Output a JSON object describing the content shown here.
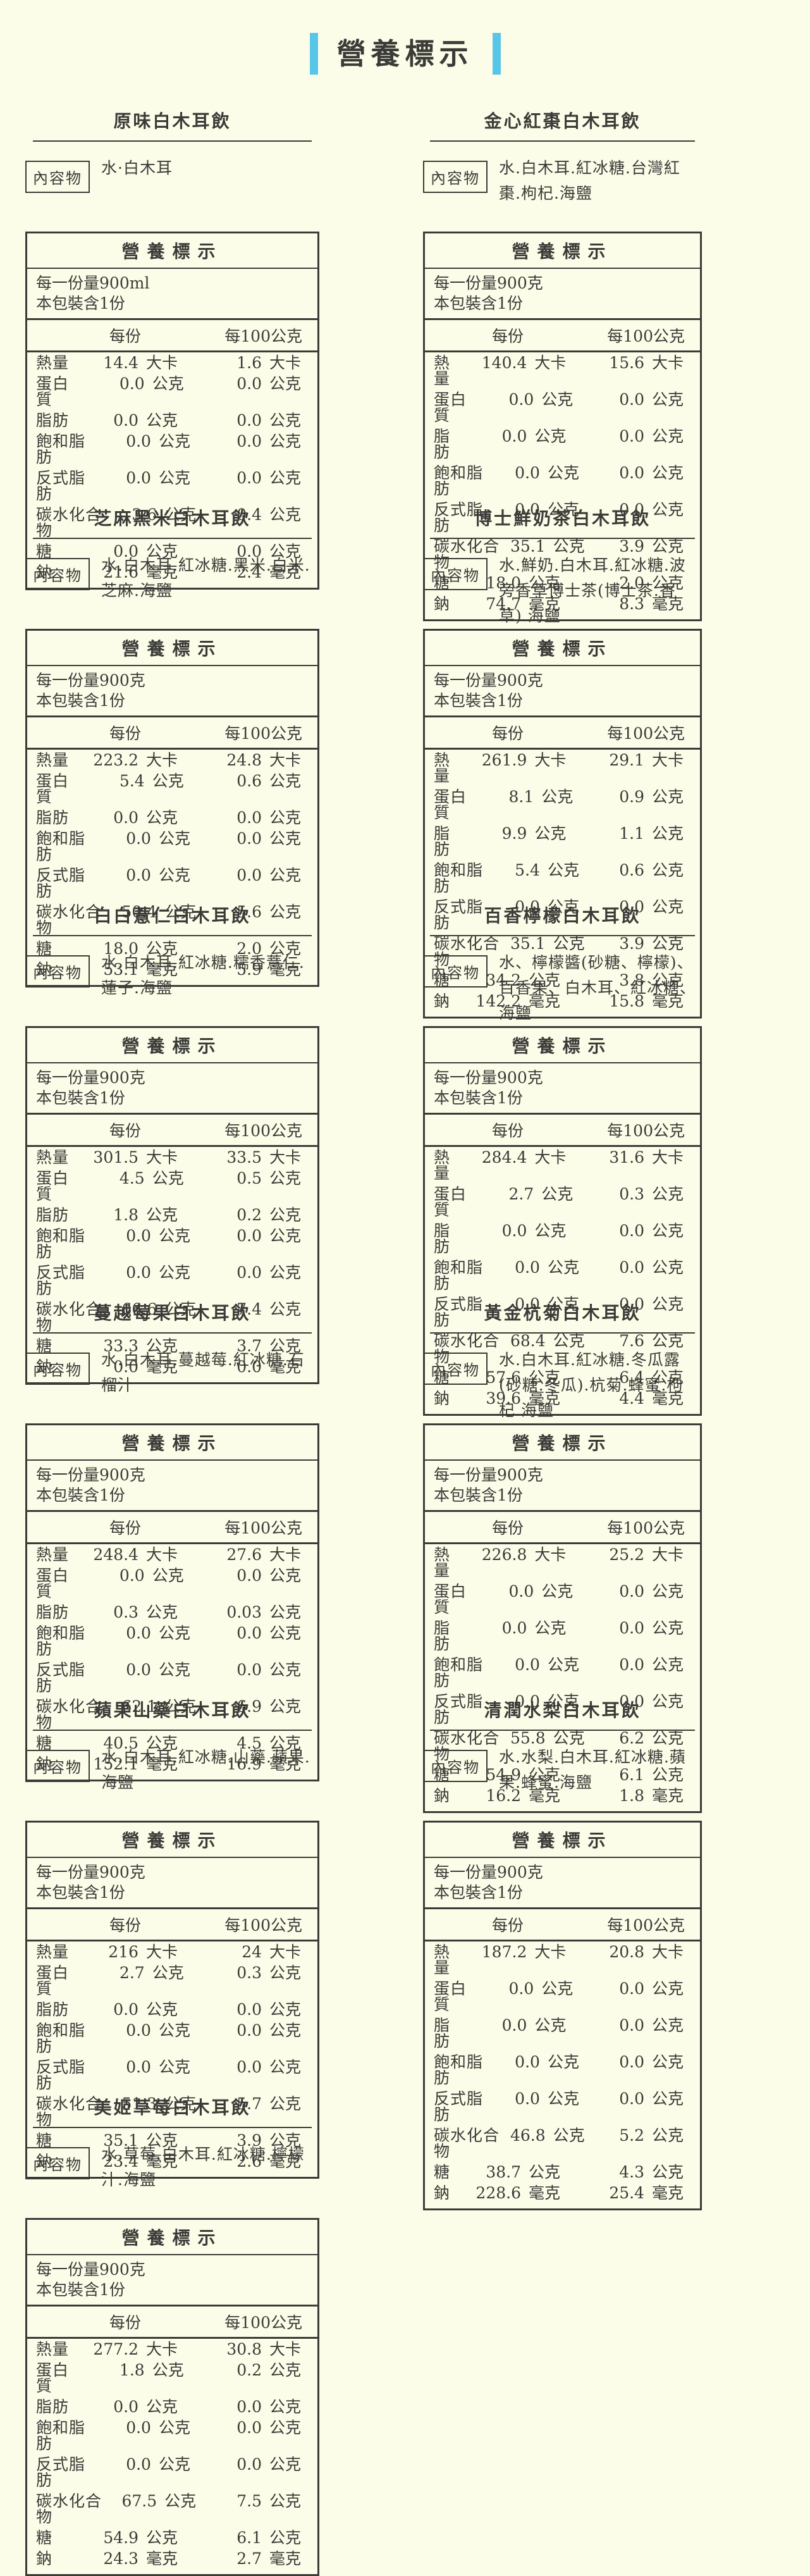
{
  "page": {
    "title": "營養標示",
    "accent_color": "#58C6E8",
    "background_color": "#FCFDE8",
    "text_color": "#3B3B38"
  },
  "labels": {
    "contents_label": "內容物",
    "nutrition_title": "營養標示",
    "serving_prefix": "每一份量",
    "package_line": "本包裝含1份",
    "col_per_serving": "每份",
    "col_per_100g": "每100公克"
  },
  "nutrients": [
    {
      "name": "熱量",
      "unit": "大卡"
    },
    {
      "name": "蛋白質",
      "unit": "公克"
    },
    {
      "name": "脂肪",
      "unit": "公克"
    },
    {
      "name": "飽和脂肪",
      "unit": "公克"
    },
    {
      "name": "反式脂肪",
      "unit": "公克"
    },
    {
      "name": "碳水化合物",
      "unit": "公克"
    },
    {
      "name": "糖",
      "unit": "公克"
    },
    {
      "name": "鈉",
      "unit": "毫克"
    }
  ],
  "products": [
    {
      "name": "原味白木耳飲",
      "ingredients": "水·白木耳",
      "serving": "900ml",
      "values": [
        [
          "14.4",
          "1.6"
        ],
        [
          "0.0",
          "0.0"
        ],
        [
          "0.0",
          "0.0"
        ],
        [
          "0.0",
          "0.0"
        ],
        [
          "0.0",
          "0.0"
        ],
        [
          "3.6",
          "0.4"
        ],
        [
          "0.0",
          "0.0"
        ],
        [
          "21.6",
          "2.4"
        ]
      ]
    },
    {
      "name": "金心紅棗白木耳飲",
      "ingredients": "水.白木耳.紅冰糖.台灣紅棗.枸杞.海鹽",
      "serving": "900克",
      "values": [
        [
          "140.4",
          "15.6"
        ],
        [
          "0.0",
          "0.0"
        ],
        [
          "0.0",
          "0.0"
        ],
        [
          "0.0",
          "0.0"
        ],
        [
          "0.0",
          "0.0"
        ],
        [
          "35.1",
          "3.9"
        ],
        [
          "18.0",
          "2.0"
        ],
        [
          "74.7",
          "8.3"
        ]
      ]
    },
    {
      "name": "芝麻黑米白木耳飲",
      "ingredients": "水.白木耳.紅冰糖.黑米.白米.芝麻.海鹽",
      "serving": "900克",
      "values": [
        [
          "223.2",
          "24.8"
        ],
        [
          "5.4",
          "0.6"
        ],
        [
          "0.0",
          "0.0"
        ],
        [
          "0.0",
          "0.0"
        ],
        [
          "0.0",
          "0.0"
        ],
        [
          "50.4",
          "5.6"
        ],
        [
          "18.0",
          "2.0"
        ],
        [
          "53.1",
          "5.9"
        ]
      ]
    },
    {
      "name": "博士鮮奶茶白木耳飲",
      "ingredients": "水.鮮奶.白木耳.紅冰糖.波旁香草博士茶(博士茶.香草).海鹽",
      "serving": "900克",
      "values": [
        [
          "261.9",
          "29.1"
        ],
        [
          "8.1",
          "0.9"
        ],
        [
          "9.9",
          "1.1"
        ],
        [
          "5.4",
          "0.6"
        ],
        [
          "0.0",
          "0.0"
        ],
        [
          "35.1",
          "3.9"
        ],
        [
          "34.2",
          "3.8"
        ],
        [
          "142.2",
          "15.8"
        ]
      ]
    },
    {
      "name": "白白薏仁白木耳飲",
      "ingredients": "水.白木耳.紅冰糖.糯香薏仁.蓮子.海鹽",
      "serving": "900克",
      "values": [
        [
          "301.5",
          "33.5"
        ],
        [
          "4.5",
          "0.5"
        ],
        [
          "1.8",
          "0.2"
        ],
        [
          "0.0",
          "0.0"
        ],
        [
          "0.0",
          "0.0"
        ],
        [
          "66.6",
          "7.4"
        ],
        [
          "33.3",
          "3.7"
        ],
        [
          "0.0",
          "0.0"
        ]
      ]
    },
    {
      "name": "百香檸檬白木耳飲",
      "ingredients": "水、檸檬醬(砂糖、檸檬)、百香果、白木耳、紅冰糖、海鹽",
      "serving": "900克",
      "values": [
        [
          "284.4",
          "31.6"
        ],
        [
          "2.7",
          "0.3"
        ],
        [
          "0.0",
          "0.0"
        ],
        [
          "0.0",
          "0.0"
        ],
        [
          "0.0",
          "0.0"
        ],
        [
          "68.4",
          "7.6"
        ],
        [
          "57.6",
          "6.4"
        ],
        [
          "39.6",
          "4.4"
        ]
      ]
    },
    {
      "name": "蔓越莓果白木耳飲",
      "ingredients": "水.白木耳.蔓越莓.紅冰糖.石榴汁",
      "serving": "900克",
      "values": [
        [
          "248.4",
          "27.6"
        ],
        [
          "0.0",
          "0.0"
        ],
        [
          "0.3",
          "0.03"
        ],
        [
          "0.0",
          "0.0"
        ],
        [
          "0.0",
          "0.0"
        ],
        [
          "62.1",
          "6.9"
        ],
        [
          "40.5",
          "4.5"
        ],
        [
          "152.1",
          "16.9"
        ]
      ]
    },
    {
      "name": "黃金杭菊白木耳飲",
      "ingredients": "水.白木耳.紅冰糖.冬瓜露(砂糖.冬瓜).杭菊.蜂蜜.枸杞.海鹽",
      "serving": "900克",
      "values": [
        [
          "226.8",
          "25.2"
        ],
        [
          "0.0",
          "0.0"
        ],
        [
          "0.0",
          "0.0"
        ],
        [
          "0.0",
          "0.0"
        ],
        [
          "0.0",
          "0.0"
        ],
        [
          "55.8",
          "6.2"
        ],
        [
          "54.9",
          "6.1"
        ],
        [
          "16.2",
          "1.8"
        ]
      ]
    },
    {
      "name": "蘋果山藥白木耳飲",
      "ingredients": "水.白木耳.紅冰糖.山藥.蘋果.海鹽",
      "serving": "900克",
      "values": [
        [
          "216",
          "24"
        ],
        [
          "2.7",
          "0.3"
        ],
        [
          "0.0",
          "0.0"
        ],
        [
          "0.0",
          "0.0"
        ],
        [
          "0.0",
          "0.0"
        ],
        [
          "51.3",
          "5.7"
        ],
        [
          "35.1",
          "3.9"
        ],
        [
          "23.4",
          "2.6"
        ]
      ]
    },
    {
      "name": "清潤水梨白木耳飲",
      "ingredients": "水.水梨.白木耳.紅冰糖.蘋果.蜂蜜.海鹽",
      "serving": "900克",
      "values": [
        [
          "187.2",
          "20.8"
        ],
        [
          "0.0",
          "0.0"
        ],
        [
          "0.0",
          "0.0"
        ],
        [
          "0.0",
          "0.0"
        ],
        [
          "0.0",
          "0.0"
        ],
        [
          "46.8",
          "5.2"
        ],
        [
          "38.7",
          "4.3"
        ],
        [
          "228.6",
          "25.4"
        ]
      ]
    },
    {
      "name": "美姬草莓白木耳飲",
      "ingredients": "水.草莓.白木耳.紅冰糖.檸檬汁.海鹽",
      "serving": "900克",
      "values": [
        [
          "277.2",
          "30.8"
        ],
        [
          "1.8",
          "0.2"
        ],
        [
          "0.0",
          "0.0"
        ],
        [
          "0.0",
          "0.0"
        ],
        [
          "0.0",
          "0.0"
        ],
        [
          "67.5",
          "7.5"
        ],
        [
          "54.9",
          "6.1"
        ],
        [
          "24.3",
          "2.7"
        ]
      ]
    }
  ]
}
